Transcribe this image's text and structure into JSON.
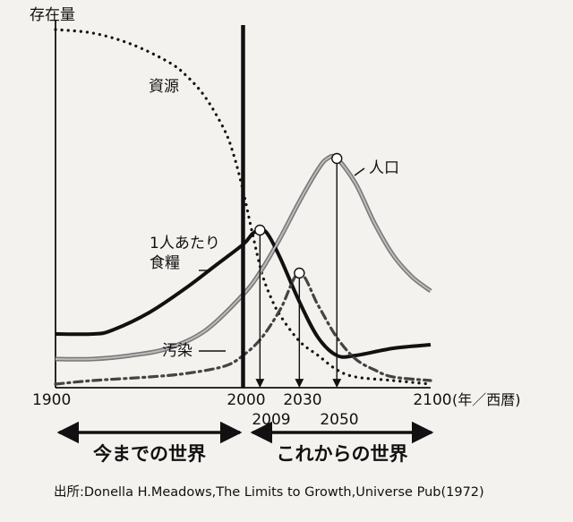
{
  "chart_data": {
    "type": "line",
    "ylabel": "存在量",
    "xunit": "(年／西暦)",
    "x_ticks": [
      1900,
      2000,
      2030,
      2100
    ],
    "x_ticks_lower": [
      2009,
      2050
    ],
    "xlim": [
      1900,
      2100
    ],
    "ylim": [
      0,
      100
    ],
    "divider_year": 2000,
    "series": [
      {
        "name": "資源",
        "style": "dotted",
        "x": [
          1900,
          1920,
          1940,
          1960,
          1970,
          1980,
          1990,
          1995,
          2000,
          2005,
          2010,
          2015,
          2020,
          2030,
          2040,
          2050,
          2060,
          2080,
          2100
        ],
        "y": [
          100,
          99,
          96,
          91,
          87,
          81,
          72,
          65,
          55,
          43,
          32,
          25,
          20,
          13,
          9,
          5,
          3,
          2,
          1
        ]
      },
      {
        "name": "人口",
        "style": "solid-gray",
        "x": [
          1900,
          1920,
          1940,
          1960,
          1980,
          2000,
          2010,
          2020,
          2030,
          2040,
          2045,
          2050,
          2060,
          2070,
          2080,
          2090,
          2100
        ],
        "y": [
          8,
          8,
          9,
          11,
          16,
          26,
          33,
          42,
          52,
          61,
          64,
          64,
          57,
          46,
          37,
          31,
          27
        ]
      },
      {
        "name": "1人あたり食糧",
        "style": "solid-black",
        "x": [
          1900,
          1920,
          1930,
          1950,
          1970,
          1985,
          2000,
          2005,
          2009,
          2013,
          2020,
          2030,
          2040,
          2050,
          2060,
          2080,
          2100
        ],
        "y": [
          15,
          15,
          16,
          21,
          28,
          34,
          40,
          43,
          44,
          43,
          36,
          24,
          14,
          9,
          9,
          11,
          12
        ]
      },
      {
        "name": "汚染",
        "style": "dash-dot",
        "x": [
          1900,
          1920,
          1950,
          1970,
          1990,
          2000,
          2010,
          2020,
          2030,
          2040,
          2050,
          2060,
          2070,
          2080,
          2100
        ],
        "y": [
          1,
          2,
          3,
          4,
          6,
          9,
          14,
          22,
          32,
          23,
          14,
          8,
          5,
          3,
          2
        ]
      }
    ],
    "points": [
      {
        "x": 2009,
        "y": 44
      },
      {
        "x": 2030,
        "y": 32
      },
      {
        "x": 2050,
        "y": 64
      }
    ],
    "annotations": {
      "past_label": "今までの世界",
      "future_label": "これからの世界",
      "source": "出所:Donella H.Meadows,The Limits to Growth,Universe Pub(1972)"
    }
  }
}
